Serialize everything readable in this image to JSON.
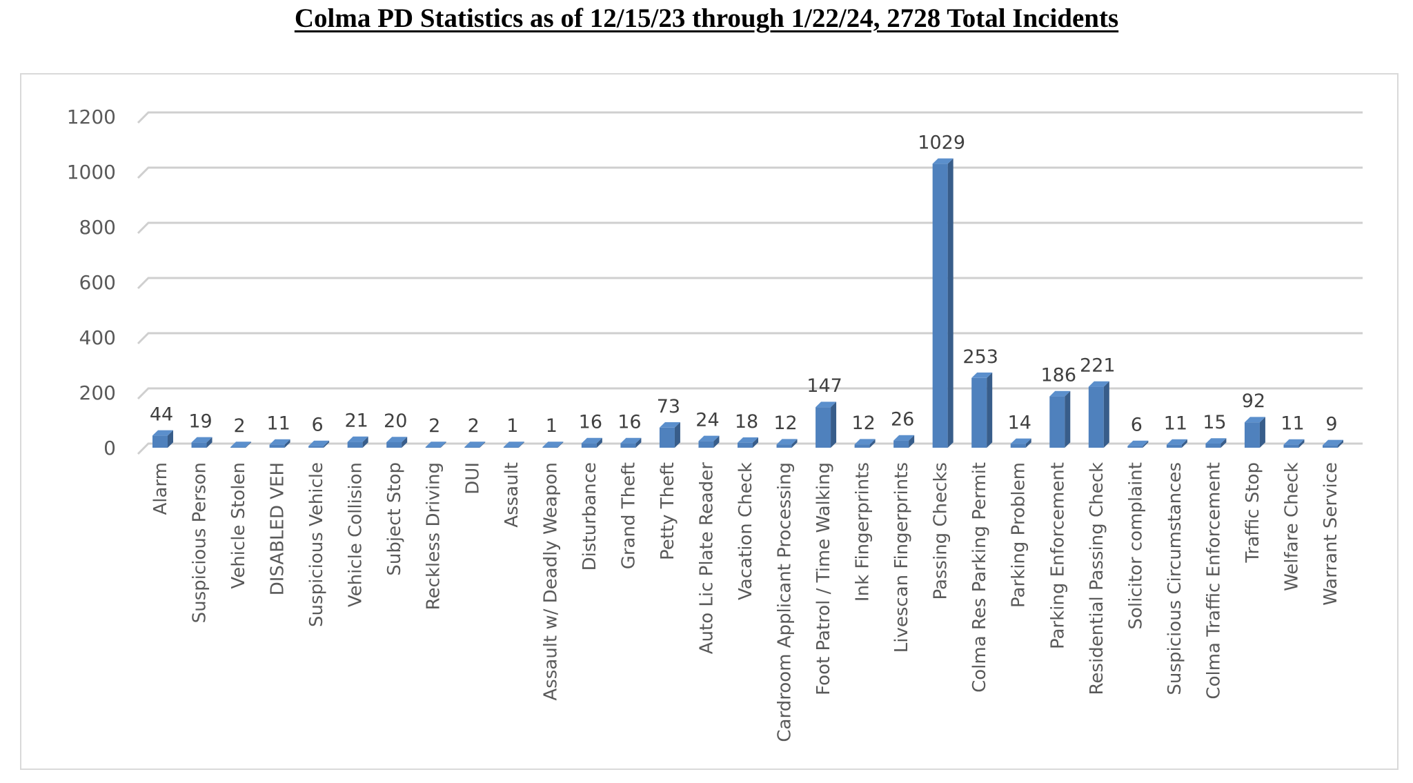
{
  "title": "Colma PD Statistics as of 12/15/23 through 1/22/24, 2728 Total Incidents",
  "colors": {
    "bar_front": "#4f81bd",
    "bar_side": "#385d8a",
    "bar_top": "#5b8fcc",
    "gridline": "#cfcfcf",
    "axis_text": "#595959",
    "label_text": "#404040"
  },
  "chart_data": {
    "type": "bar",
    "title": "Colma PD Statistics as of 12/15/23 through 1/22/24, 2728 Total Incidents",
    "xlabel": "",
    "ylabel": "",
    "ylim": [
      0,
      1200
    ],
    "yticks": [
      0,
      200,
      400,
      600,
      800,
      1000,
      1200
    ],
    "grid": true,
    "legend": "none",
    "style": "3d-column",
    "categories": [
      "Alarm",
      "Suspicious Person",
      "Vehicle Stolen",
      "DISABLED VEH",
      "Suspicious Vehicle",
      "Vehicle Collision",
      "Subject Stop",
      "Reckless Driving",
      "DUI",
      "Assault",
      "Assault w/ Deadly Weapon",
      "Disturbance",
      "Grand Theft",
      "Petty Theft",
      "Auto Lic Plate Reader",
      "Vacation Check",
      "Cardroom Applicant Processing",
      "Foot Patrol / Time Walking",
      "Ink Fingerprints",
      "Livescan Fingerprints",
      "Passing Checks",
      "Colma Res Parking Permit",
      "Parking Problem",
      "Parking Enforcement",
      "Residential Passing Check",
      "Solicitor complaint",
      "Suspicious Circumstances",
      "Colma Traffic Enforcement",
      "Traffic Stop",
      "Welfare Check",
      "Warrant Service"
    ],
    "values": [
      44,
      19,
      2,
      11,
      6,
      21,
      20,
      2,
      2,
      1,
      1,
      16,
      16,
      73,
      24,
      18,
      12,
      147,
      12,
      26,
      1029,
      253,
      14,
      186,
      221,
      6,
      11,
      15,
      92,
      11,
      9
    ]
  }
}
